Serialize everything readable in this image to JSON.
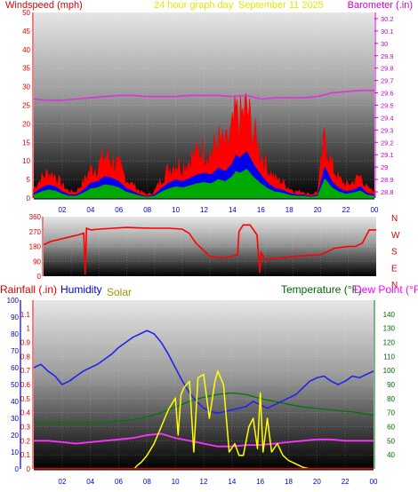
{
  "header": {
    "left_label": "Windspeed (mph)",
    "center_label": "24 hour graph day",
    "date_label": "September 11 2025",
    "right_label": "Barometer (.in)"
  },
  "colors": {
    "windspeed": "#dd0000",
    "barometer": "#cc00cc",
    "wind_dir": "#ff0000",
    "rain": "#ff0000",
    "humidity": "#0000cc",
    "solar": "#999900",
    "temperature": "#006600",
    "dewpoint": "#ff00ff",
    "axis_red": "#dd0000",
    "axis_magenta": "#cc00cc",
    "axis_blue": "#0000cc",
    "axis_green": "#006600",
    "axis_black": "#000000"
  },
  "x_ticks": [
    "02",
    "04",
    "06",
    "08",
    "10",
    "12",
    "14",
    "16",
    "18",
    "20",
    "22",
    "00"
  ],
  "bottom_header": {
    "rain_label": "Rainfall (.in)",
    "humidity_label": "Humidity",
    "solar_label": "Solar",
    "temp_label": "Temperature (°F)",
    "dew_label": "Dew Point (°F)"
  },
  "direction_labels": [
    "N",
    "W",
    "S",
    "E",
    "N"
  ],
  "chart_data": [
    {
      "type": "line",
      "x_unit": "hour",
      "xlim": [
        0,
        24
      ],
      "y_axes": {
        "windspeed": {
          "ylim": [
            0,
            50
          ],
          "ticks": [
            0,
            5,
            10,
            15,
            20,
            25,
            30,
            35,
            40,
            45,
            50
          ]
        },
        "barometer": {
          "ylim": [
            28.75,
            30.25
          ],
          "ticks": [
            "28.8",
            "28.9",
            "29",
            "29.1",
            "29.2",
            "29.3",
            "29.4",
            "29.5",
            "29.6",
            "29.7",
            "29.8",
            "29.9",
            "30",
            "30.1",
            "30.2"
          ]
        }
      },
      "series": [
        {
          "name": "Windspeed (mph)",
          "axis": "windspeed",
          "x": [
            0,
            0.5,
            1,
            1.5,
            2,
            2.5,
            3,
            3.5,
            4,
            4.5,
            5,
            5.5,
            6,
            6.5,
            7,
            7.5,
            8,
            8.5,
            9,
            9.5,
            10,
            10.5,
            11,
            11.5,
            12,
            12.5,
            13,
            13.5,
            14,
            14.25,
            14.5,
            15,
            15.5,
            16,
            16.5,
            17,
            17.5,
            18,
            18.5,
            19,
            19.5,
            20,
            20.5,
            21,
            21.5,
            22,
            22.5,
            23,
            23.5,
            24
          ],
          "values": [
            3,
            6,
            8,
            7,
            4,
            2,
            2,
            5,
            9,
            10,
            13,
            12,
            10,
            6,
            4,
            2,
            1,
            2,
            6,
            9,
            11,
            10,
            12,
            14,
            15,
            14,
            18,
            16,
            21,
            26,
            24,
            28,
            20,
            14,
            9,
            6,
            5,
            3,
            2,
            2,
            1,
            2,
            19,
            10,
            6,
            4,
            5,
            7,
            3,
            2
          ]
        },
        {
          "name": "Barometer (.in)",
          "axis": "barometer",
          "x": [
            0,
            1,
            2,
            3,
            4,
            5,
            6,
            7,
            8,
            9,
            10,
            11,
            12,
            13,
            14,
            15,
            16,
            17,
            18,
            19,
            20,
            21,
            22,
            23,
            24
          ],
          "values": [
            29.55,
            29.54,
            29.54,
            29.55,
            29.56,
            29.57,
            29.58,
            29.58,
            29.57,
            29.57,
            29.57,
            29.58,
            29.58,
            29.58,
            29.57,
            29.58,
            29.55,
            29.56,
            29.56,
            29.56,
            29.57,
            29.6,
            29.61,
            29.62,
            29.62
          ]
        }
      ]
    },
    {
      "type": "line",
      "x_unit": "hour",
      "xlim": [
        0,
        24
      ],
      "ylim": [
        0,
        360
      ],
      "y_ticks": [
        0,
        90,
        180,
        270,
        360
      ],
      "series": [
        {
          "name": "Wind direction",
          "x": [
            0,
            0.5,
            1,
            1.5,
            2,
            2.5,
            2.9,
            3,
            3.1,
            3.4,
            4,
            5,
            6,
            7,
            8,
            9,
            10,
            10.5,
            11,
            11.5,
            12,
            13,
            14,
            14.1,
            14.4,
            14.9,
            15.4,
            15.6,
            15.7,
            16,
            17,
            18,
            19,
            20,
            21,
            22,
            22.5,
            23,
            23.5,
            24
          ],
          "values": [
            190,
            210,
            220,
            230,
            240,
            250,
            260,
            10,
            290,
            280,
            285,
            290,
            295,
            292,
            290,
            290,
            285,
            260,
            200,
            160,
            120,
            110,
            130,
            270,
            310,
            310,
            250,
            20,
            140,
            100,
            110,
            120,
            125,
            130,
            170,
            180,
            180,
            200,
            280,
            280
          ]
        }
      ]
    },
    {
      "type": "line",
      "x_unit": "hour",
      "xlim": [
        0,
        24
      ],
      "y_axes": {
        "humidity": {
          "ylim": [
            0,
            100
          ],
          "ticks": [
            0,
            10,
            20,
            30,
            40,
            50,
            60,
            70,
            80,
            90,
            100
          ]
        },
        "rainfall": {
          "ylim": [
            0,
            1.2
          ],
          "ticks": [
            "0",
            "0.1",
            "0.2",
            "0.3",
            "0.4",
            "0.5",
            "0.6",
            "0.7",
            "0.8",
            "0.9",
            "1",
            "1.1"
          ]
        },
        "temperature": {
          "ylim": [
            30,
            150
          ],
          "ticks": [
            40,
            50,
            60,
            70,
            80,
            90,
            100,
            110,
            120,
            130,
            140
          ]
        }
      },
      "series": [
        {
          "name": "Humidity",
          "axis": "humidity",
          "x": [
            0,
            0.5,
            1,
            1.5,
            2,
            2.5,
            3,
            3.5,
            4,
            4.5,
            5,
            5.5,
            6,
            6.5,
            7,
            7.5,
            8,
            8.5,
            9,
            9.5,
            10,
            10.5,
            11,
            11.5,
            12,
            12.5,
            13,
            13.5,
            14,
            14.5,
            15,
            15.5,
            16,
            16.5,
            17,
            17.5,
            18,
            18.5,
            19,
            19.5,
            20,
            20.5,
            21,
            21.5,
            22,
            22.5,
            23,
            23.5,
            24
          ],
          "values": [
            60,
            62,
            58,
            55,
            50,
            52,
            55,
            58,
            60,
            62,
            65,
            68,
            72,
            75,
            78,
            80,
            82,
            80,
            75,
            68,
            60,
            52,
            45,
            40,
            36,
            34,
            33,
            34,
            35,
            36,
            37,
            40,
            38,
            36,
            38,
            40,
            42,
            44,
            48,
            52,
            54,
            55,
            52,
            50,
            52,
            55,
            54,
            56,
            58
          ]
        },
        {
          "name": "Temperature (°F)",
          "axis": "temperature",
          "x": [
            0,
            1,
            2,
            3,
            4,
            5,
            6,
            7,
            8,
            9,
            10,
            11,
            12,
            13,
            14,
            15,
            16,
            17,
            18,
            19,
            20,
            21,
            22,
            23,
            24
          ],
          "values": [
            63,
            63,
            63,
            63,
            63,
            63,
            64,
            65,
            67,
            70,
            74,
            78,
            81,
            83,
            84,
            83,
            80,
            78,
            76,
            74,
            73,
            72,
            71,
            70,
            68
          ]
        },
        {
          "name": "Dew Point (°F)",
          "axis": "temperature",
          "x": [
            0,
            1,
            2,
            3,
            4,
            5,
            6,
            7,
            8,
            9,
            10,
            11,
            12,
            13,
            14,
            15,
            16,
            17,
            18,
            19,
            20,
            21,
            22,
            23,
            24
          ],
          "values": [
            50,
            50,
            49,
            48,
            49,
            50,
            51,
            52,
            54,
            55,
            52,
            50,
            48,
            46,
            46,
            47,
            47,
            48,
            49,
            50,
            51,
            51,
            50,
            50,
            50
          ]
        },
        {
          "name": "Solar",
          "axis": "humidity",
          "x": [
            0,
            7.1,
            7.3,
            7.6,
            8,
            8.5,
            9,
            9.5,
            10,
            10.2,
            10.4,
            10.6,
            11,
            11.3,
            11.6,
            12,
            12.4,
            12.8,
            13,
            13.4,
            13.8,
            14.2,
            14.5,
            14.8,
            15.2,
            15.5,
            15.8,
            16,
            16.2,
            16.5,
            16.8,
            17.2,
            17.6,
            18,
            18.5,
            19,
            19.5,
            24
          ],
          "values": [
            0,
            0,
            2,
            4,
            8,
            15,
            25,
            35,
            42,
            20,
            44,
            48,
            52,
            10,
            54,
            56,
            30,
            52,
            58,
            50,
            10,
            15,
            8,
            8,
            25,
            30,
            12,
            45,
            10,
            30,
            10,
            15,
            8,
            5,
            3,
            1,
            0,
            0
          ]
        },
        {
          "name": "Rainfall (.in)",
          "axis": "rainfall",
          "x": [
            0,
            24
          ],
          "values": [
            0,
            0
          ]
        }
      ]
    }
  ]
}
